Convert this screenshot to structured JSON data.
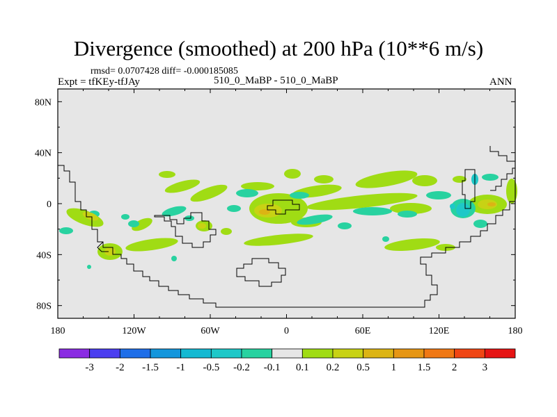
{
  "title": "Divergence (smoothed) at 200 hPa (10**6 m/s)",
  "stats_text": "rmsd= 0.0707428 diff= -0.000185085",
  "experiment_text": "Expt = tfKEy-tfJAy",
  "cases_text": "510_0_MaBP - 510_0_MaBP",
  "season": "ANN",
  "map": {
    "lon_ticks": [
      "180",
      "120W",
      "60W",
      "0",
      "60E",
      "120E",
      "180"
    ],
    "lat_ticks": [
      "80N",
      "40N",
      "0",
      "40S",
      "80S"
    ],
    "background_color": "#e6e6e6"
  },
  "colorbar": {
    "colors": [
      "#8a2be2",
      "#4b3ef0",
      "#1e6ee8",
      "#1496dc",
      "#14b9d2",
      "#1ec8c8",
      "#28d2a0",
      "#e6e6e6",
      "#a0dc14",
      "#c8d214",
      "#dcb414",
      "#e69614",
      "#f07814",
      "#f04614",
      "#e61414"
    ],
    "labels": [
      "-3",
      "-2",
      "-1.5",
      "-1",
      "-0.5",
      "-0.2",
      "-0.1",
      "0.1",
      "0.2",
      "0.5",
      "1",
      "1.5",
      "2",
      "3"
    ]
  }
}
